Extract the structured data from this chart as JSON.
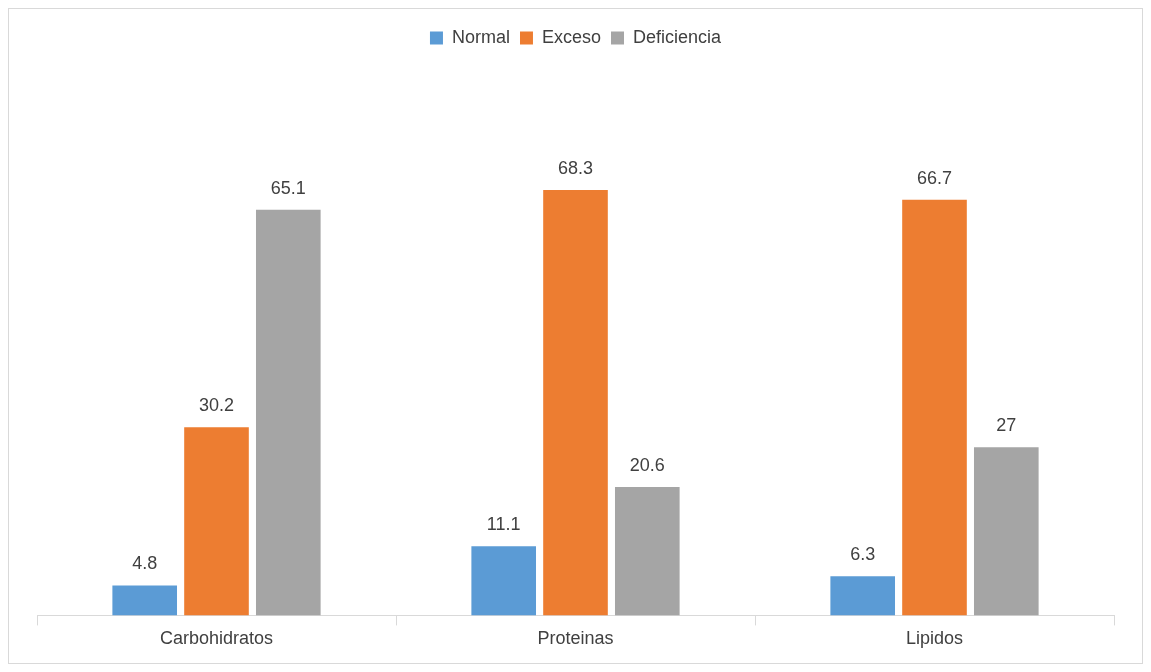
{
  "chart_data": {
    "type": "bar",
    "categories": [
      "Carbohidratos",
      "Proteinas",
      "Lipidos"
    ],
    "series": [
      {
        "name": "Normal",
        "color": "#5b9bd5",
        "values": [
          4.8,
          11.1,
          6.3
        ]
      },
      {
        "name": "Exceso",
        "color": "#ed7d31",
        "values": [
          30.2,
          68.3,
          66.7
        ]
      },
      {
        "name": "Deficiencia",
        "color": "#a5a5a5",
        "values": [
          65.1,
          20.6,
          27
        ]
      }
    ],
    "data_labels": true,
    "legend": "top",
    "grid": false
  }
}
